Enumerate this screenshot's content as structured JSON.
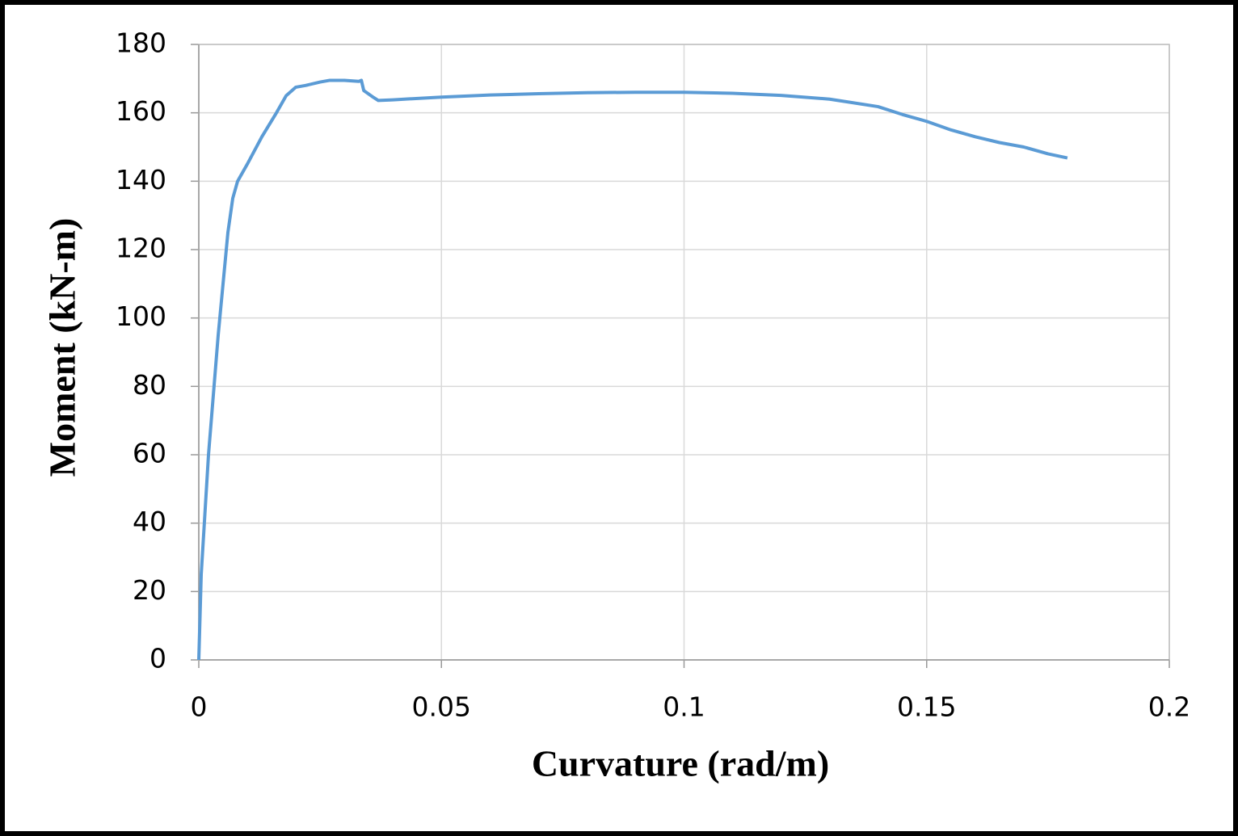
{
  "chart_data": {
    "type": "line",
    "x_label": "Curvature (rad/m)",
    "y_label": "Moment (kN-m)",
    "x": [
      0,
      0.0005,
      0.002,
      0.004,
      0.006,
      0.007,
      0.008,
      0.01,
      0.013,
      0.016,
      0.018,
      0.02,
      0.022,
      0.025,
      0.027,
      0.03,
      0.033,
      0.0335,
      0.034,
      0.036,
      0.037,
      0.04,
      0.05,
      0.06,
      0.07,
      0.08,
      0.09,
      0.1,
      0.11,
      0.12,
      0.13,
      0.14,
      0.145,
      0.15,
      0.155,
      0.16,
      0.165,
      0.17,
      0.175,
      0.179
    ],
    "series": [
      {
        "color": "#5b9bd5",
        "values": [
          0,
          25,
          60,
          95,
          125,
          135,
          140,
          145,
          153,
          160,
          165,
          167.5,
          168,
          169,
          169.5,
          169.5,
          169.2,
          169.5,
          166.5,
          164.5,
          163.6,
          163.8,
          164.6,
          165.2,
          165.6,
          165.9,
          166,
          166,
          165.7,
          165.1,
          164,
          161.8,
          159.5,
          157.5,
          155,
          153,
          151.3,
          150,
          148,
          146.8
        ]
      }
    ],
    "xlim": [
      0,
      0.2
    ],
    "xticks": [
      0,
      0.05,
      0.1,
      0.15,
      0.2
    ],
    "ylim": [
      0,
      180
    ],
    "yticks": [
      0,
      20,
      40,
      60,
      80,
      100,
      120,
      140,
      160,
      180
    ],
    "grid": true
  }
}
